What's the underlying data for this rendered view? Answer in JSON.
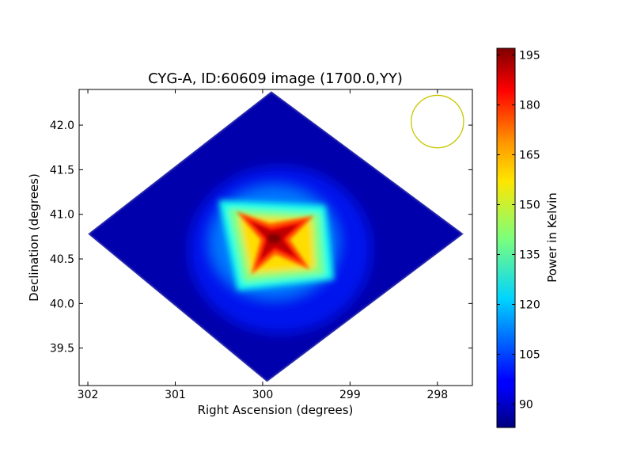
{
  "chart_data": {
    "type": "heatmap",
    "title": "CYG-A, ID:60609 image (1700.0,YY)",
    "xlabel": "Right Ascension (degrees)",
    "ylabel": "Declination (degrees)",
    "xlim": [
      302.1,
      297.6
    ],
    "ylim": [
      39.08,
      42.4
    ],
    "x_inverted": true,
    "xticks": [
      302,
      301,
      300,
      299,
      298
    ],
    "xtick_labels": [
      "302",
      "301",
      "300",
      "299",
      "298"
    ],
    "yticks": [
      39.5,
      40.0,
      40.5,
      41.0,
      41.5,
      42.0
    ],
    "ytick_labels": [
      "39.5",
      "40.0",
      "40.5",
      "41.0",
      "41.5",
      "42.0"
    ],
    "colormap": "jet",
    "colorbar": {
      "label": "Power in Kelvin",
      "min": 83,
      "max": 197,
      "ticks": [
        90,
        105,
        120,
        135,
        150,
        165,
        180,
        195
      ],
      "tick_labels": [
        "90",
        "105",
        "120",
        "135",
        "150",
        "165",
        "180",
        "195"
      ]
    },
    "image": {
      "shape": "diamond",
      "diamond_vertices": {
        "left": [
          302.0,
          40.78
        ],
        "right": [
          297.7,
          40.78
        ],
        "top": [
          299.9,
          42.38
        ],
        "bottom": [
          299.95,
          39.12
        ]
      },
      "background_level": 88,
      "outer_glow": {
        "center": [
          299.8,
          40.6
        ],
        "level": 100
      },
      "halo": {
        "center": [
          299.8,
          40.72
        ],
        "level": 150
      },
      "peak": {
        "ra": 299.87,
        "dec": 40.73,
        "value": 197
      }
    },
    "beam": {
      "ra": 298.0,
      "dec": 42.04,
      "radius_deg": 0.3,
      "color": "#c8c800"
    }
  }
}
